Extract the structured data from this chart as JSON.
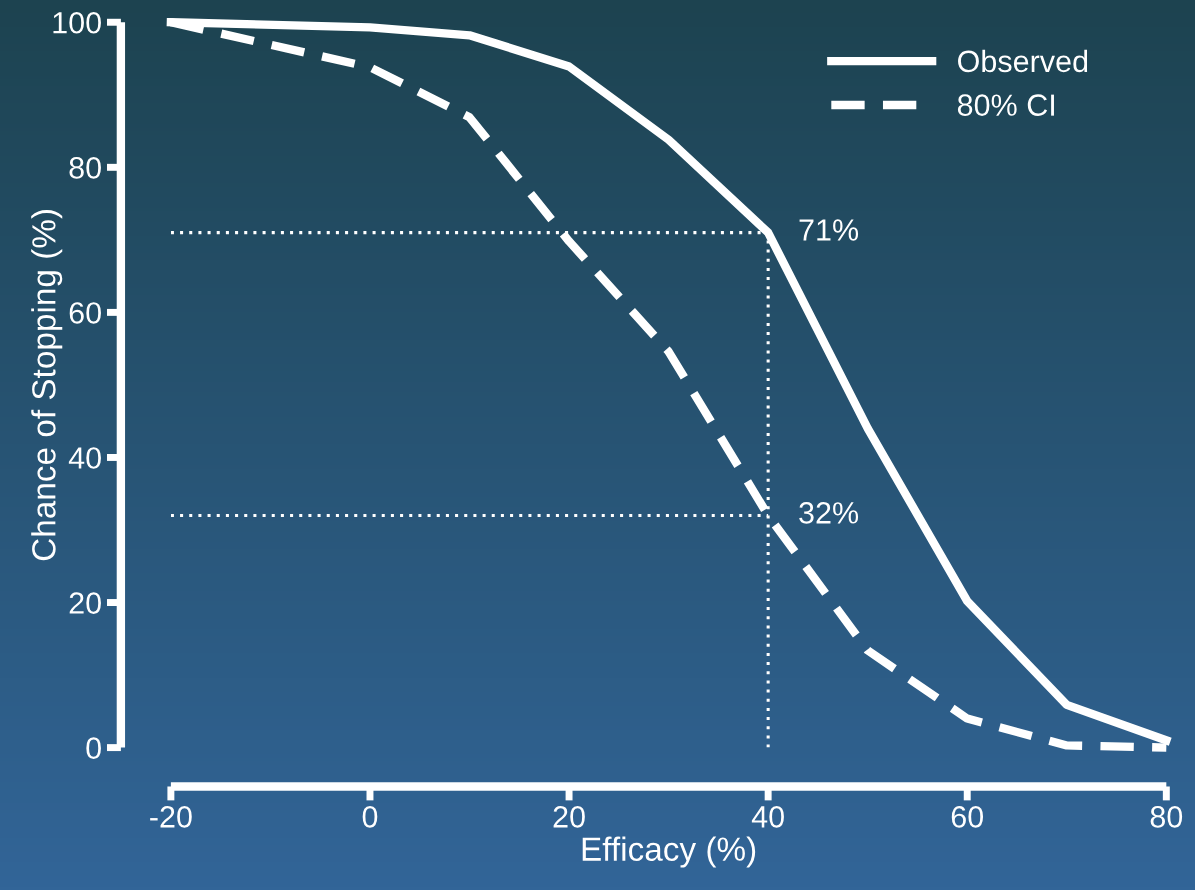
{
  "chart_data": {
    "type": "line",
    "xlabel": "Efficacy (%)",
    "ylabel": "Chance of Stopping (%)",
    "x": [
      -20,
      0,
      10,
      20,
      30,
      40,
      50,
      60,
      70,
      80
    ],
    "series": [
      {
        "name": "Observed",
        "color": "#ffffff",
        "line_style": "solid",
        "values": [
          100,
          99.3,
          98.2,
          93.9,
          83.8,
          71,
          44,
          20.2,
          5.9,
          1
        ]
      },
      {
        "name": "80% CI",
        "color": "#ffffff",
        "line_style": "dashed",
        "values": [
          100,
          93.8,
          86.9,
          69.8,
          54.6,
          32,
          13.4,
          4,
          0.3,
          0
        ]
      }
    ],
    "ref_lines": [
      {
        "axis": "y",
        "value": 71,
        "label": "71%",
        "color": "#ffffff",
        "line_style": "dotted"
      },
      {
        "axis": "y",
        "value": 32,
        "label": "32%",
        "color": "#ffffff",
        "line_style": "dotted"
      },
      {
        "axis": "x",
        "value": 40,
        "label": null,
        "color": "#ffffff",
        "line_style": "dotted"
      }
    ],
    "xlim": [
      -20,
      80
    ],
    "xticks": [
      -20,
      0,
      20,
      40,
      60,
      80
    ],
    "ylim": [
      0,
      100
    ],
    "yticks": [
      0,
      20,
      40,
      60,
      80,
      100
    ],
    "grid": false,
    "legend": "top right",
    "marker": "none"
  }
}
